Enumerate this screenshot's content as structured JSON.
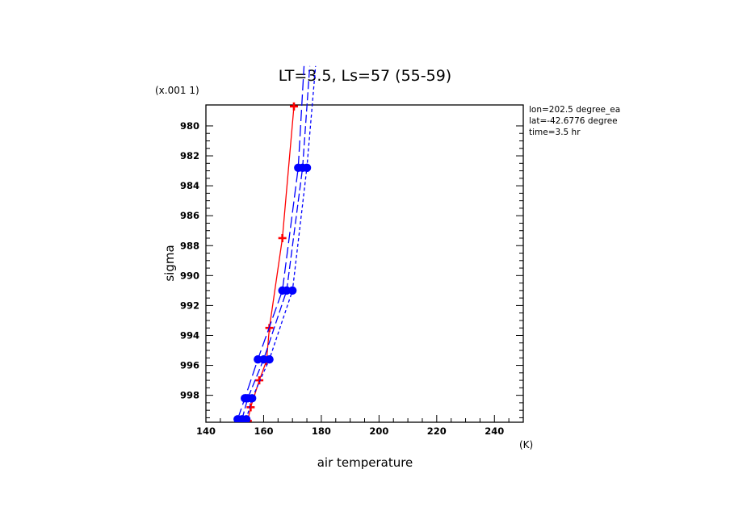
{
  "chart_data": {
    "type": "line",
    "title": "LT=3.5, Ls=57 (55-59)",
    "xlabel": "air temperature",
    "xunit": "(K)",
    "ylabel": "sigma",
    "yscale_label": "(x.001 1)",
    "xlim": [
      140,
      250
    ],
    "ylim": [
      999.8,
      978.6
    ],
    "y_inverted": true,
    "x_ticks": [
      140,
      160,
      180,
      200,
      220,
      240
    ],
    "y_ticks": [
      980,
      982,
      984,
      986,
      988,
      990,
      992,
      994,
      996,
      998
    ],
    "annotations": [
      "lon=202.5 degree_ea",
      "lat=-42.6776 degree",
      "time=3.5 hr"
    ],
    "series": [
      {
        "color": "#ff0000",
        "style": "solid",
        "marker": "plus",
        "x": [
          154.5,
          155.5,
          158.5,
          161,
          162,
          166.5,
          170.5
        ],
        "y": [
          999.7,
          998.8,
          997.0,
          995.7,
          993.5,
          987.5,
          978.7
        ]
      },
      {
        "color": "#0000ff",
        "style": "dashed",
        "marker": "circle",
        "x": [
          151,
          153.5,
          158,
          166.5,
          172,
          174
        ],
        "y": [
          999.6,
          998.2,
          995.6,
          991.0,
          982.8,
          976.0
        ]
      },
      {
        "color": "#0000ff",
        "style": "dashed",
        "marker": "circle",
        "x": [
          152.5,
          154.5,
          160,
          168,
          173.5,
          176
        ],
        "y": [
          999.6,
          998.2,
          995.6,
          991.0,
          982.8,
          976.0
        ]
      },
      {
        "color": "#0000ff",
        "style": "dashed",
        "marker": "circle",
        "x": [
          154,
          156,
          162,
          170,
          175,
          178
        ],
        "y": [
          999.6,
          998.2,
          995.6,
          991.0,
          982.8,
          976.0
        ]
      }
    ]
  }
}
